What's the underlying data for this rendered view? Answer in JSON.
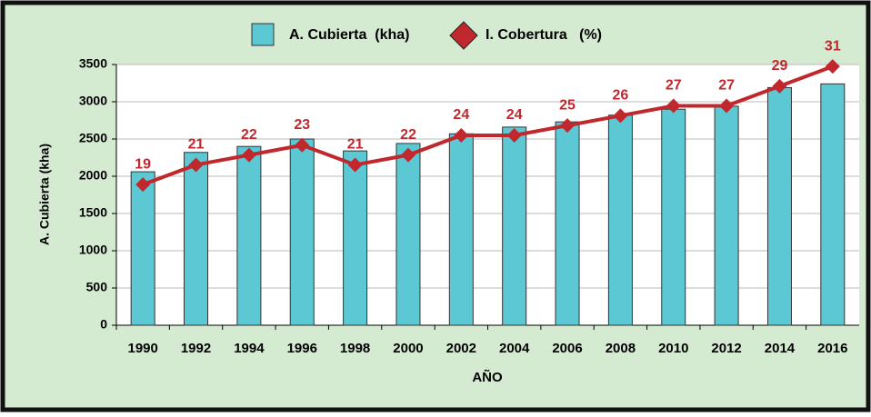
{
  "chart_data": {
    "type": "bar_line",
    "categories": [
      "1990",
      "1992",
      "1994",
      "1996",
      "1998",
      "2000",
      "2002",
      "2004",
      "2006",
      "2008",
      "2010",
      "2012",
      "2014",
      "2016"
    ],
    "series": [
      {
        "name": "A. Cubierta  (kha)",
        "color": "#5bc8d4",
        "type": "bar",
        "values": [
          2060,
          2320,
          2400,
          2500,
          2340,
          2440,
          2570,
          2660,
          2730,
          2820,
          2900,
          2940,
          3190,
          3240
        ]
      },
      {
        "name": "I. Cobertura   (%)",
        "color": "#c0282d",
        "type": "line",
        "axis": "y2",
        "values": [
          19,
          21,
          22,
          23,
          21,
          22,
          24,
          24,
          25,
          26,
          27,
          27,
          29,
          31
        ]
      }
    ],
    "xlabel": "AÑO",
    "ylabel": "A. Cubierta (kha)",
    "ylim": [
      0,
      3500
    ],
    "yticks": [
      0,
      500,
      1000,
      1500,
      2000,
      2500,
      3000,
      3500
    ],
    "y2lim": [
      4.7,
      31.2
    ],
    "grid": true
  }
}
